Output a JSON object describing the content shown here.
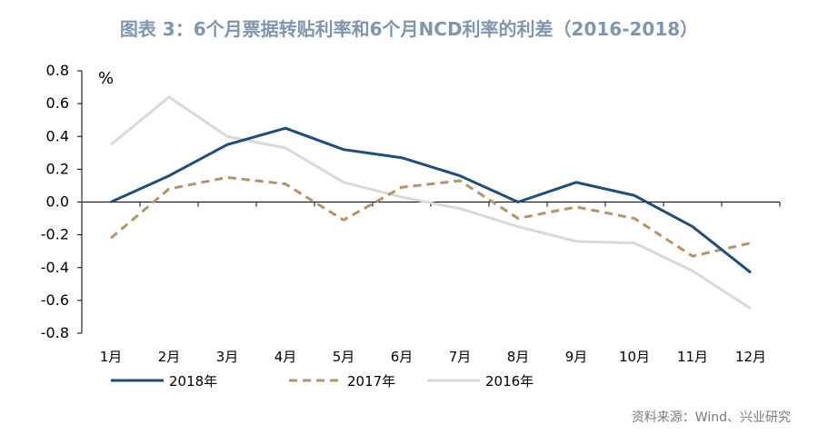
{
  "chart_data": {
    "type": "line",
    "title": "图表 3：6个月票据转贴利率和6个月NCD利率的利差（2016-2018）",
    "unit": "%",
    "categories": [
      "1月",
      "2月",
      "3月",
      "4月",
      "5月",
      "6月",
      "7月",
      "8月",
      "9月",
      "10月",
      "11月",
      "12月"
    ],
    "ylim": [
      -0.8,
      0.8
    ],
    "yticks": [
      "0.8",
      "0.6",
      "0.4",
      "0.2",
      "0.0",
      "-0.2",
      "-0.4",
      "-0.6",
      "-0.8"
    ],
    "grid": false,
    "legend_position": "bottom",
    "series": [
      {
        "name": "2018年",
        "color": "#1f4e79",
        "dash": "solid",
        "values": [
          0.0,
          0.16,
          0.35,
          0.45,
          0.32,
          0.27,
          0.16,
          0.0,
          0.12,
          0.04,
          -0.15,
          -0.43
        ]
      },
      {
        "name": "2017年",
        "color": "#b39566",
        "dash": "dashed",
        "values": [
          -0.22,
          0.08,
          0.15,
          0.11,
          -0.11,
          0.09,
          0.13,
          -0.1,
          -0.03,
          -0.1,
          -0.33,
          -0.25
        ]
      },
      {
        "name": "2016年",
        "color": "#d9d9d9",
        "dash": "solid",
        "values": [
          0.35,
          0.64,
          0.4,
          0.33,
          0.12,
          0.03,
          -0.04,
          -0.15,
          -0.24,
          -0.25,
          -0.42,
          -0.65
        ]
      }
    ]
  },
  "source": "资料来源：Wind、兴业研究"
}
